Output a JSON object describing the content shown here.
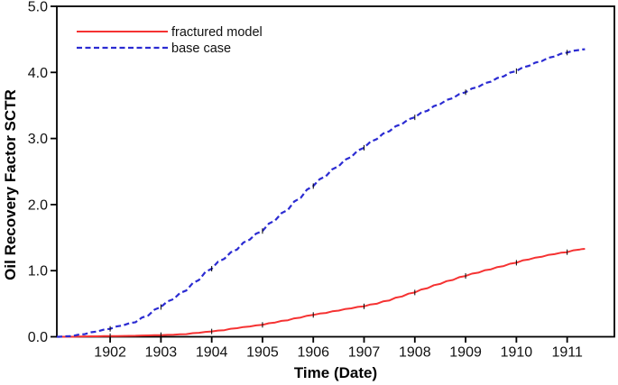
{
  "figure": {
    "background_color": "#ffffff",
    "frame_color": "#000000"
  },
  "chart_data": {
    "type": "line",
    "title": "",
    "xlabel": "Time (Date)",
    "ylabel": "Oil Recovery Factor SCTR",
    "xlim": [
      1900.95,
      1911.93
    ],
    "ylim": [
      0,
      5
    ],
    "grid": false,
    "legend_position": "top-left-inside",
    "x_tick_labels": [
      "1902",
      "1903",
      "1904",
      "1905",
      "1906",
      "1907",
      "1908",
      "1909",
      "1910",
      "1911"
    ],
    "x_tick_values": [
      1902,
      1903,
      1904,
      1905,
      1906,
      1907,
      1908,
      1909,
      1910,
      1911
    ],
    "y_tick_labels": [
      "0.0",
      "1.0",
      "2.0",
      "3.0",
      "4.0",
      "5.0"
    ],
    "y_tick_values": [
      0,
      1,
      2,
      3,
      4,
      5
    ],
    "year_marker_color": "#000000",
    "x": [
      1900.95,
      1901,
      1901.25,
      1901.5,
      1901.75,
      1902,
      1902.25,
      1902.5,
      1902.75,
      1903,
      1903.25,
      1903.5,
      1903.75,
      1904,
      1904.25,
      1904.5,
      1904.75,
      1905,
      1905.25,
      1905.5,
      1905.75,
      1906,
      1906.25,
      1906.5,
      1906.75,
      1907,
      1907.25,
      1907.5,
      1907.75,
      1908,
      1908.25,
      1908.5,
      1908.75,
      1909,
      1909.25,
      1909.5,
      1909.75,
      1910,
      1910.25,
      1910.5,
      1910.75,
      1911,
      1911.25,
      1911.35
    ],
    "series": [
      {
        "name": "fractured model",
        "color": "#f53232",
        "style": "solid",
        "line_width": 2,
        "values": [
          0,
          0,
          0,
          0.005,
          0.007,
          0.01,
          0.012,
          0.015,
          0.02,
          0.025,
          0.03,
          0.04,
          0.06,
          0.08,
          0.1,
          0.13,
          0.155,
          0.18,
          0.215,
          0.25,
          0.29,
          0.33,
          0.36,
          0.395,
          0.43,
          0.46,
          0.5,
          0.55,
          0.61,
          0.67,
          0.735,
          0.8,
          0.86,
          0.92,
          0.97,
          1.02,
          1.07,
          1.12,
          1.17,
          1.21,
          1.25,
          1.28,
          1.32,
          1.33
        ]
      },
      {
        "name": "base case",
        "color": "#2b2bd2",
        "style": "dashed",
        "line_width": 2.2,
        "values": [
          0,
          0,
          0.01,
          0.04,
          0.08,
          0.12,
          0.17,
          0.22,
          0.32,
          0.45,
          0.57,
          0.7,
          0.86,
          1.03,
          1.18,
          1.32,
          1.47,
          1.6,
          1.76,
          1.92,
          2.1,
          2.28,
          2.43,
          2.58,
          2.72,
          2.86,
          2.99,
          3.11,
          3.22,
          3.32,
          3.42,
          3.52,
          3.61,
          3.7,
          3.78,
          3.86,
          3.94,
          4.02,
          4.1,
          4.17,
          4.24,
          4.3,
          4.34,
          4.35
        ]
      }
    ]
  }
}
